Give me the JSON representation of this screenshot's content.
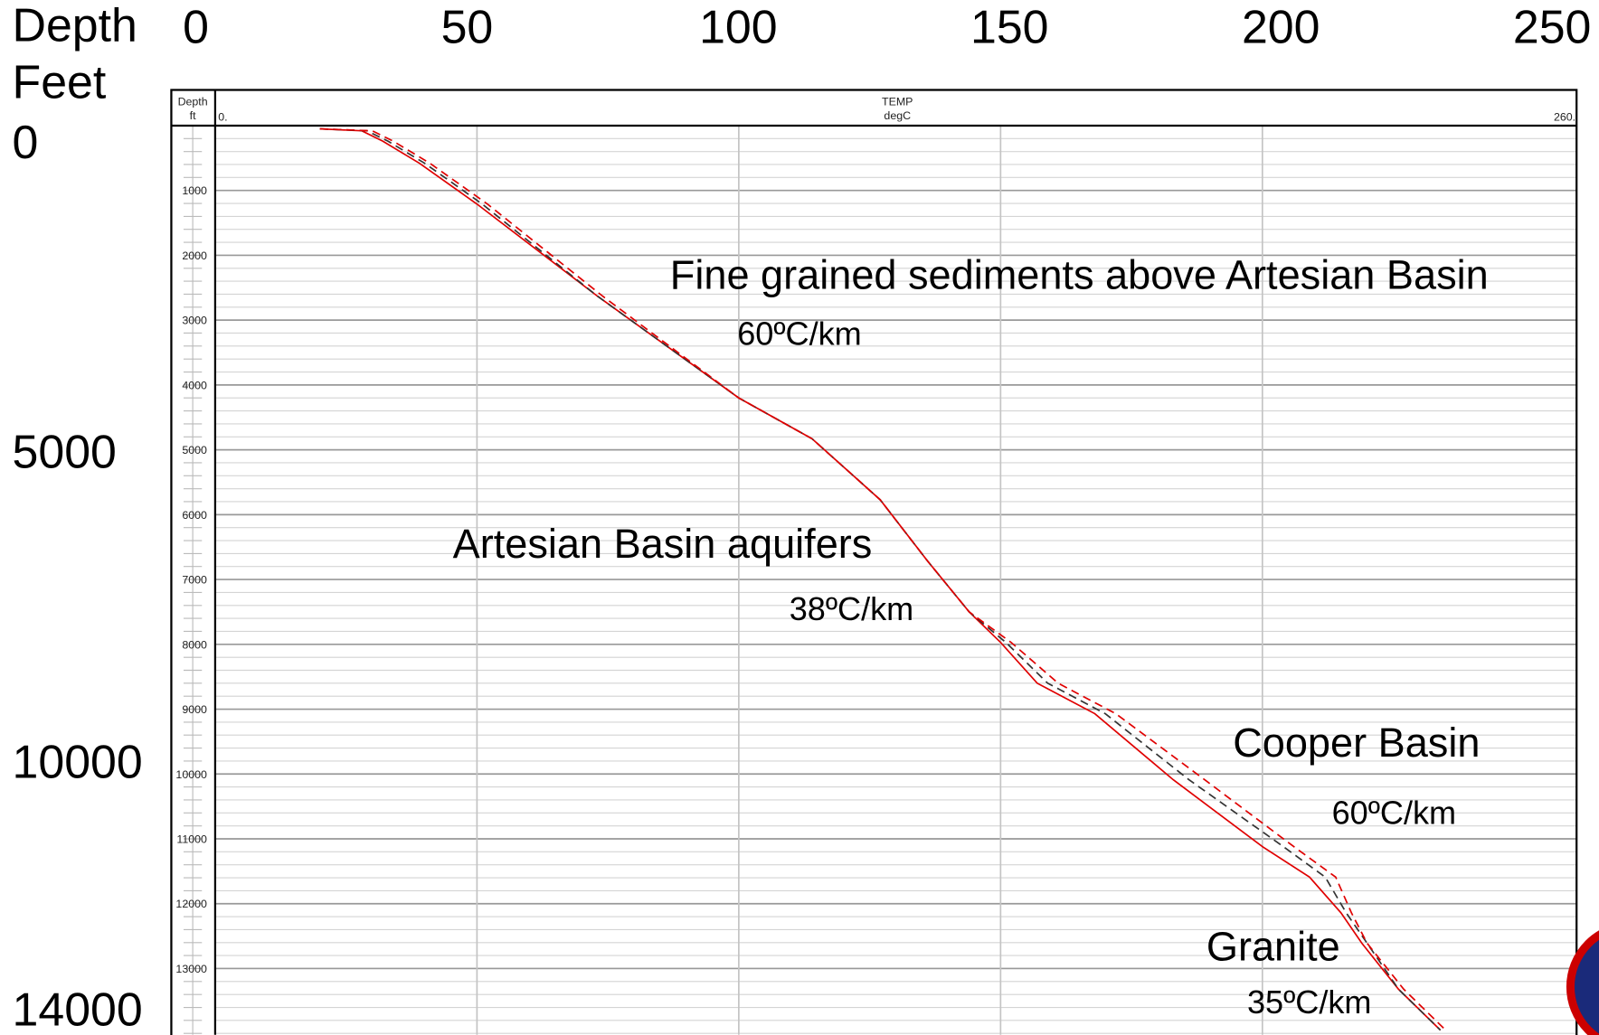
{
  "chart_data": {
    "type": "line",
    "ylabel": "Depth",
    "ylabel_unit": "Feet",
    "xlim": [
      0,
      250
    ],
    "xticks": [
      0,
      50,
      100,
      150,
      200,
      250
    ],
    "ylim": [
      0,
      14000
    ],
    "yticks": [
      0,
      5000,
      10000,
      14000
    ],
    "track_depth_label": "Depth",
    "track_depth_unit": "ft",
    "track_curve": "TEMP",
    "track_unit": "degC",
    "track_xlim": [
      0,
      260
    ],
    "track_xticks": [
      {
        "value": 0,
        "label": "0."
      },
      {
        "value": 260,
        "label": "260."
      }
    ],
    "track_xgrid": [
      50,
      100,
      150,
      200
    ],
    "track_ylim": [
      0,
      14000
    ],
    "track_yticks": [
      1000,
      2000,
      3000,
      4000,
      5000,
      6000,
      7000,
      8000,
      9000,
      10000,
      11000,
      12000,
      13000
    ],
    "grid": true,
    "series": [
      {
        "color": "#e00000",
        "dash": false,
        "x": [
          20,
          28,
          32,
          39,
          50,
          73,
          100,
          114,
          127,
          136,
          144,
          150,
          157,
          168,
          183,
          200,
          209,
          215,
          219,
          226,
          234
        ],
        "values": [
          50,
          80,
          240,
          580,
          1210,
          2630,
          4200,
          4830,
          5770,
          6710,
          7500,
          7970,
          8600,
          9070,
          10090,
          11120,
          11590,
          12140,
          12610,
          13320,
          13950
        ]
      },
      {
        "color": "#333333",
        "dash": true,
        "x": [
          20,
          29,
          33,
          40,
          51,
          73,
          100,
          114,
          127,
          136,
          144,
          151,
          159,
          170,
          186,
          204,
          212,
          216,
          220,
          226,
          234
        ],
        "values": [
          50,
          80,
          240,
          580,
          1210,
          2630,
          4200,
          4830,
          5770,
          6710,
          7500,
          7970,
          8600,
          9070,
          10090,
          11120,
          11590,
          12140,
          12610,
          13320,
          13950
        ]
      },
      {
        "color": "#e00000",
        "dash": true,
        "x": [
          20,
          30,
          34,
          41,
          52,
          74,
          100,
          114,
          127,
          136,
          144,
          152,
          161,
          172,
          189,
          206,
          214,
          217,
          220,
          227,
          235
        ],
        "values": [
          50,
          80,
          240,
          580,
          1210,
          2630,
          4200,
          4830,
          5770,
          6710,
          7500,
          7970,
          8600,
          9070,
          10090,
          11120,
          11590,
          12140,
          12610,
          13320,
          13950
        ]
      }
    ],
    "annotations": [
      "Fine grained sediments above Artesian Basin",
      "60ºC/km",
      "Artesian Basin aquifers",
      "38ºC/km",
      "Cooper Basin",
      "60ºC/km",
      "Granite",
      "35ºC/km"
    ]
  }
}
